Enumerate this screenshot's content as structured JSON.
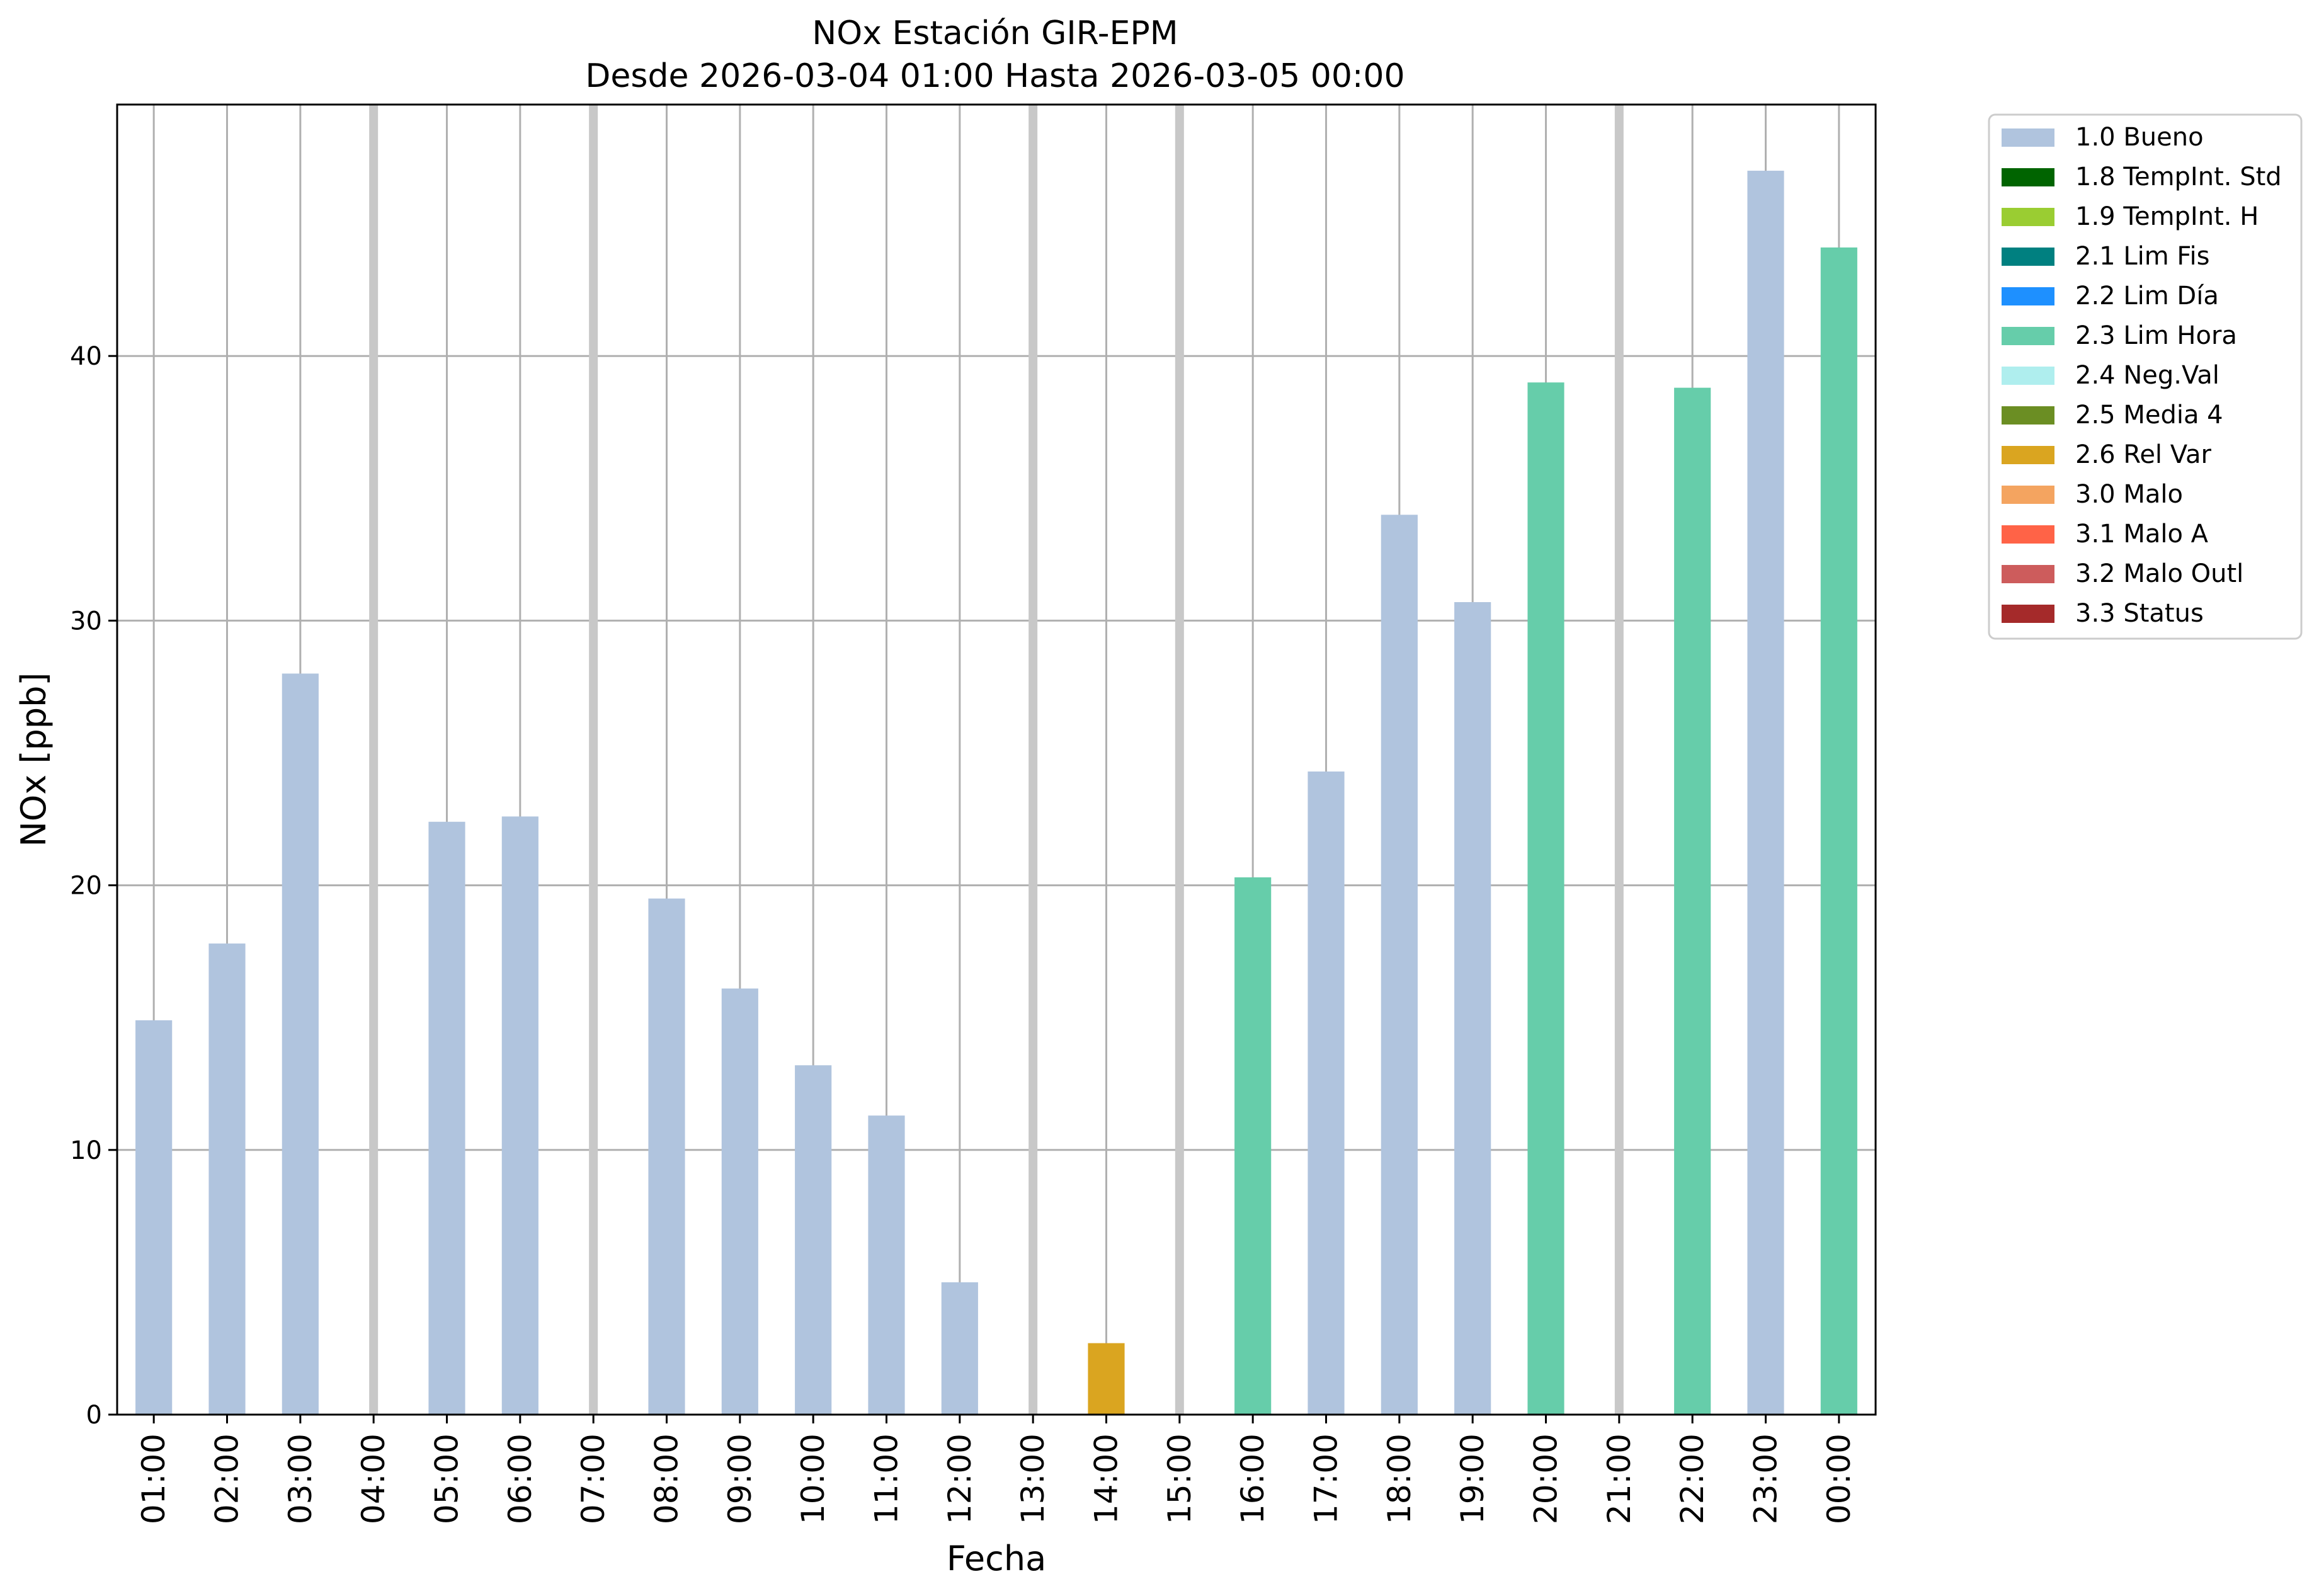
{
  "chart_data": {
    "type": "bar",
    "title": "NOx Estación GIR-EPM",
    "subtitle": "Desde 2026-03-04 01:00 Hasta 2026-03-05 00:00",
    "xlabel": "Fecha",
    "ylabel": "NOx [ppb]",
    "ylim": [
      0,
      49.5
    ],
    "yticks": [
      0,
      10,
      20,
      30,
      40
    ],
    "grid": true,
    "legend_position": "outside-right",
    "categories": [
      "01:00",
      "02:00",
      "03:00",
      "04:00",
      "05:00",
      "06:00",
      "07:00",
      "08:00",
      "09:00",
      "10:00",
      "11:00",
      "12:00",
      "13:00",
      "14:00",
      "15:00",
      "16:00",
      "17:00",
      "18:00",
      "19:00",
      "20:00",
      "21:00",
      "22:00",
      "23:00",
      "00:00"
    ],
    "values": [
      14.9,
      17.8,
      28.0,
      null,
      22.4,
      22.6,
      null,
      19.5,
      16.1,
      13.2,
      11.3,
      5.0,
      null,
      2.7,
      null,
      20.3,
      24.3,
      34.0,
      30.7,
      39.0,
      null,
      38.8,
      47.0,
      44.1
    ],
    "flags": [
      "1.0 Bueno",
      "1.0 Bueno",
      "1.0 Bueno",
      null,
      "1.0 Bueno",
      "1.0 Bueno",
      null,
      "1.0 Bueno",
      "1.0 Bueno",
      "1.0 Bueno",
      "1.0 Bueno",
      "1.0 Bueno",
      null,
      "2.6 Rel Var",
      null,
      "2.3 Lim Hora",
      "1.0 Bueno",
      "1.0 Bueno",
      "1.0 Bueno",
      "2.3 Lim Hora",
      null,
      "2.3 Lim Hora",
      "1.0 Bueno",
      "2.3 Lim Hora"
    ],
    "legend": [
      {
        "label": "1.0 Bueno",
        "color": "#b0c4de"
      },
      {
        "label": "1.8 TempInt. Std",
        "color": "#006400"
      },
      {
        "label": "1.9 TempInt. H",
        "color": "#9acd32"
      },
      {
        "label": "2.1 Lim Fis",
        "color": "#008080"
      },
      {
        "label": "2.2 Lim Día",
        "color": "#1e90ff"
      },
      {
        "label": "2.3 Lim Hora",
        "color": "#66cdaa"
      },
      {
        "label": "2.4 Neg.Val",
        "color": "#afeeee"
      },
      {
        "label": "2.5 Media 4",
        "color": "#6b8e23"
      },
      {
        "label": "2.6 Rel Var",
        "color": "#daa520"
      },
      {
        "label": "3.0 Malo",
        "color": "#f4a460"
      },
      {
        "label": "3.1 Malo A",
        "color": "#ff6347"
      },
      {
        "label": "3.2 Malo Outl",
        "color": "#cd5c5c"
      },
      {
        "label": "3.3 Status",
        "color": "#a52a2a"
      }
    ]
  }
}
